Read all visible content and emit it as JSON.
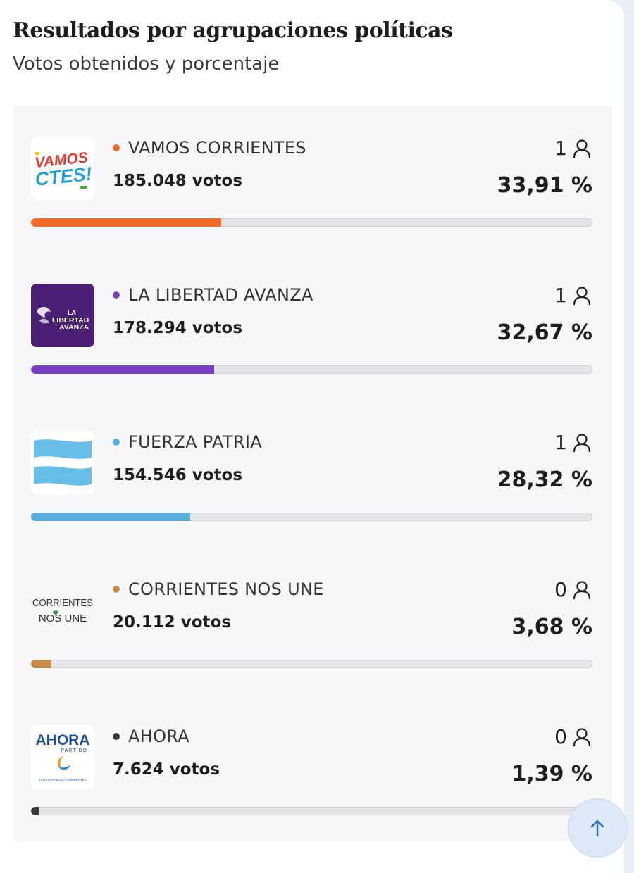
{
  "header": {
    "title": "Resultados por agrupaciones políticas",
    "subtitle": "Votos obtenidos y porcentaje"
  },
  "parties": [
    {
      "name": "VAMOS CORRIENTES",
      "votes": "185.048 votos",
      "seats": "1",
      "percent": "33,91 %",
      "percent_value": 33.91,
      "color": "#f06a2a",
      "logo": {
        "icon": "vamos-corrientes-logo",
        "line1": "VAMOS",
        "line2": "CTES!"
      }
    },
    {
      "name": "LA LIBERTAD AVANZA",
      "votes": "178.294 votos",
      "seats": "1",
      "percent": "32,67 %",
      "percent_value": 32.67,
      "color": "#7a3ec4",
      "logo": {
        "icon": "la-libertad-avanza-logo",
        "line1": "LA",
        "line2": "LIBERTAD",
        "line3": "AVANZA"
      }
    },
    {
      "name": "FUERZA PATRIA",
      "votes": "154.546 votos",
      "seats": "1",
      "percent": "28,32 %",
      "percent_value": 28.32,
      "color": "#5aaee0",
      "logo": {
        "icon": "fuerza-patria-flag-logo"
      }
    },
    {
      "name": "CORRIENTES NOS UNE",
      "votes": "20.112 votos",
      "seats": "0",
      "percent": "3,68 %",
      "percent_value": 3.68,
      "color": "#c9894a",
      "logo": {
        "icon": "corrientes-nos-une-logo",
        "line1": "CORRIENTES",
        "line2": "NOS UNE"
      }
    },
    {
      "name": "AHORA",
      "votes": "7.624 votos",
      "seats": "0",
      "percent": "1,39 %",
      "percent_value": 1.39,
      "color": "#3a3a3a",
      "logo": {
        "icon": "ahora-partido-logo",
        "line1": "AHORA",
        "line2": "PARTIDO",
        "line3": "LO NUEVO PARA CORRIENTES"
      }
    }
  ],
  "scroll_top": {
    "icon": "arrow-up-icon"
  }
}
